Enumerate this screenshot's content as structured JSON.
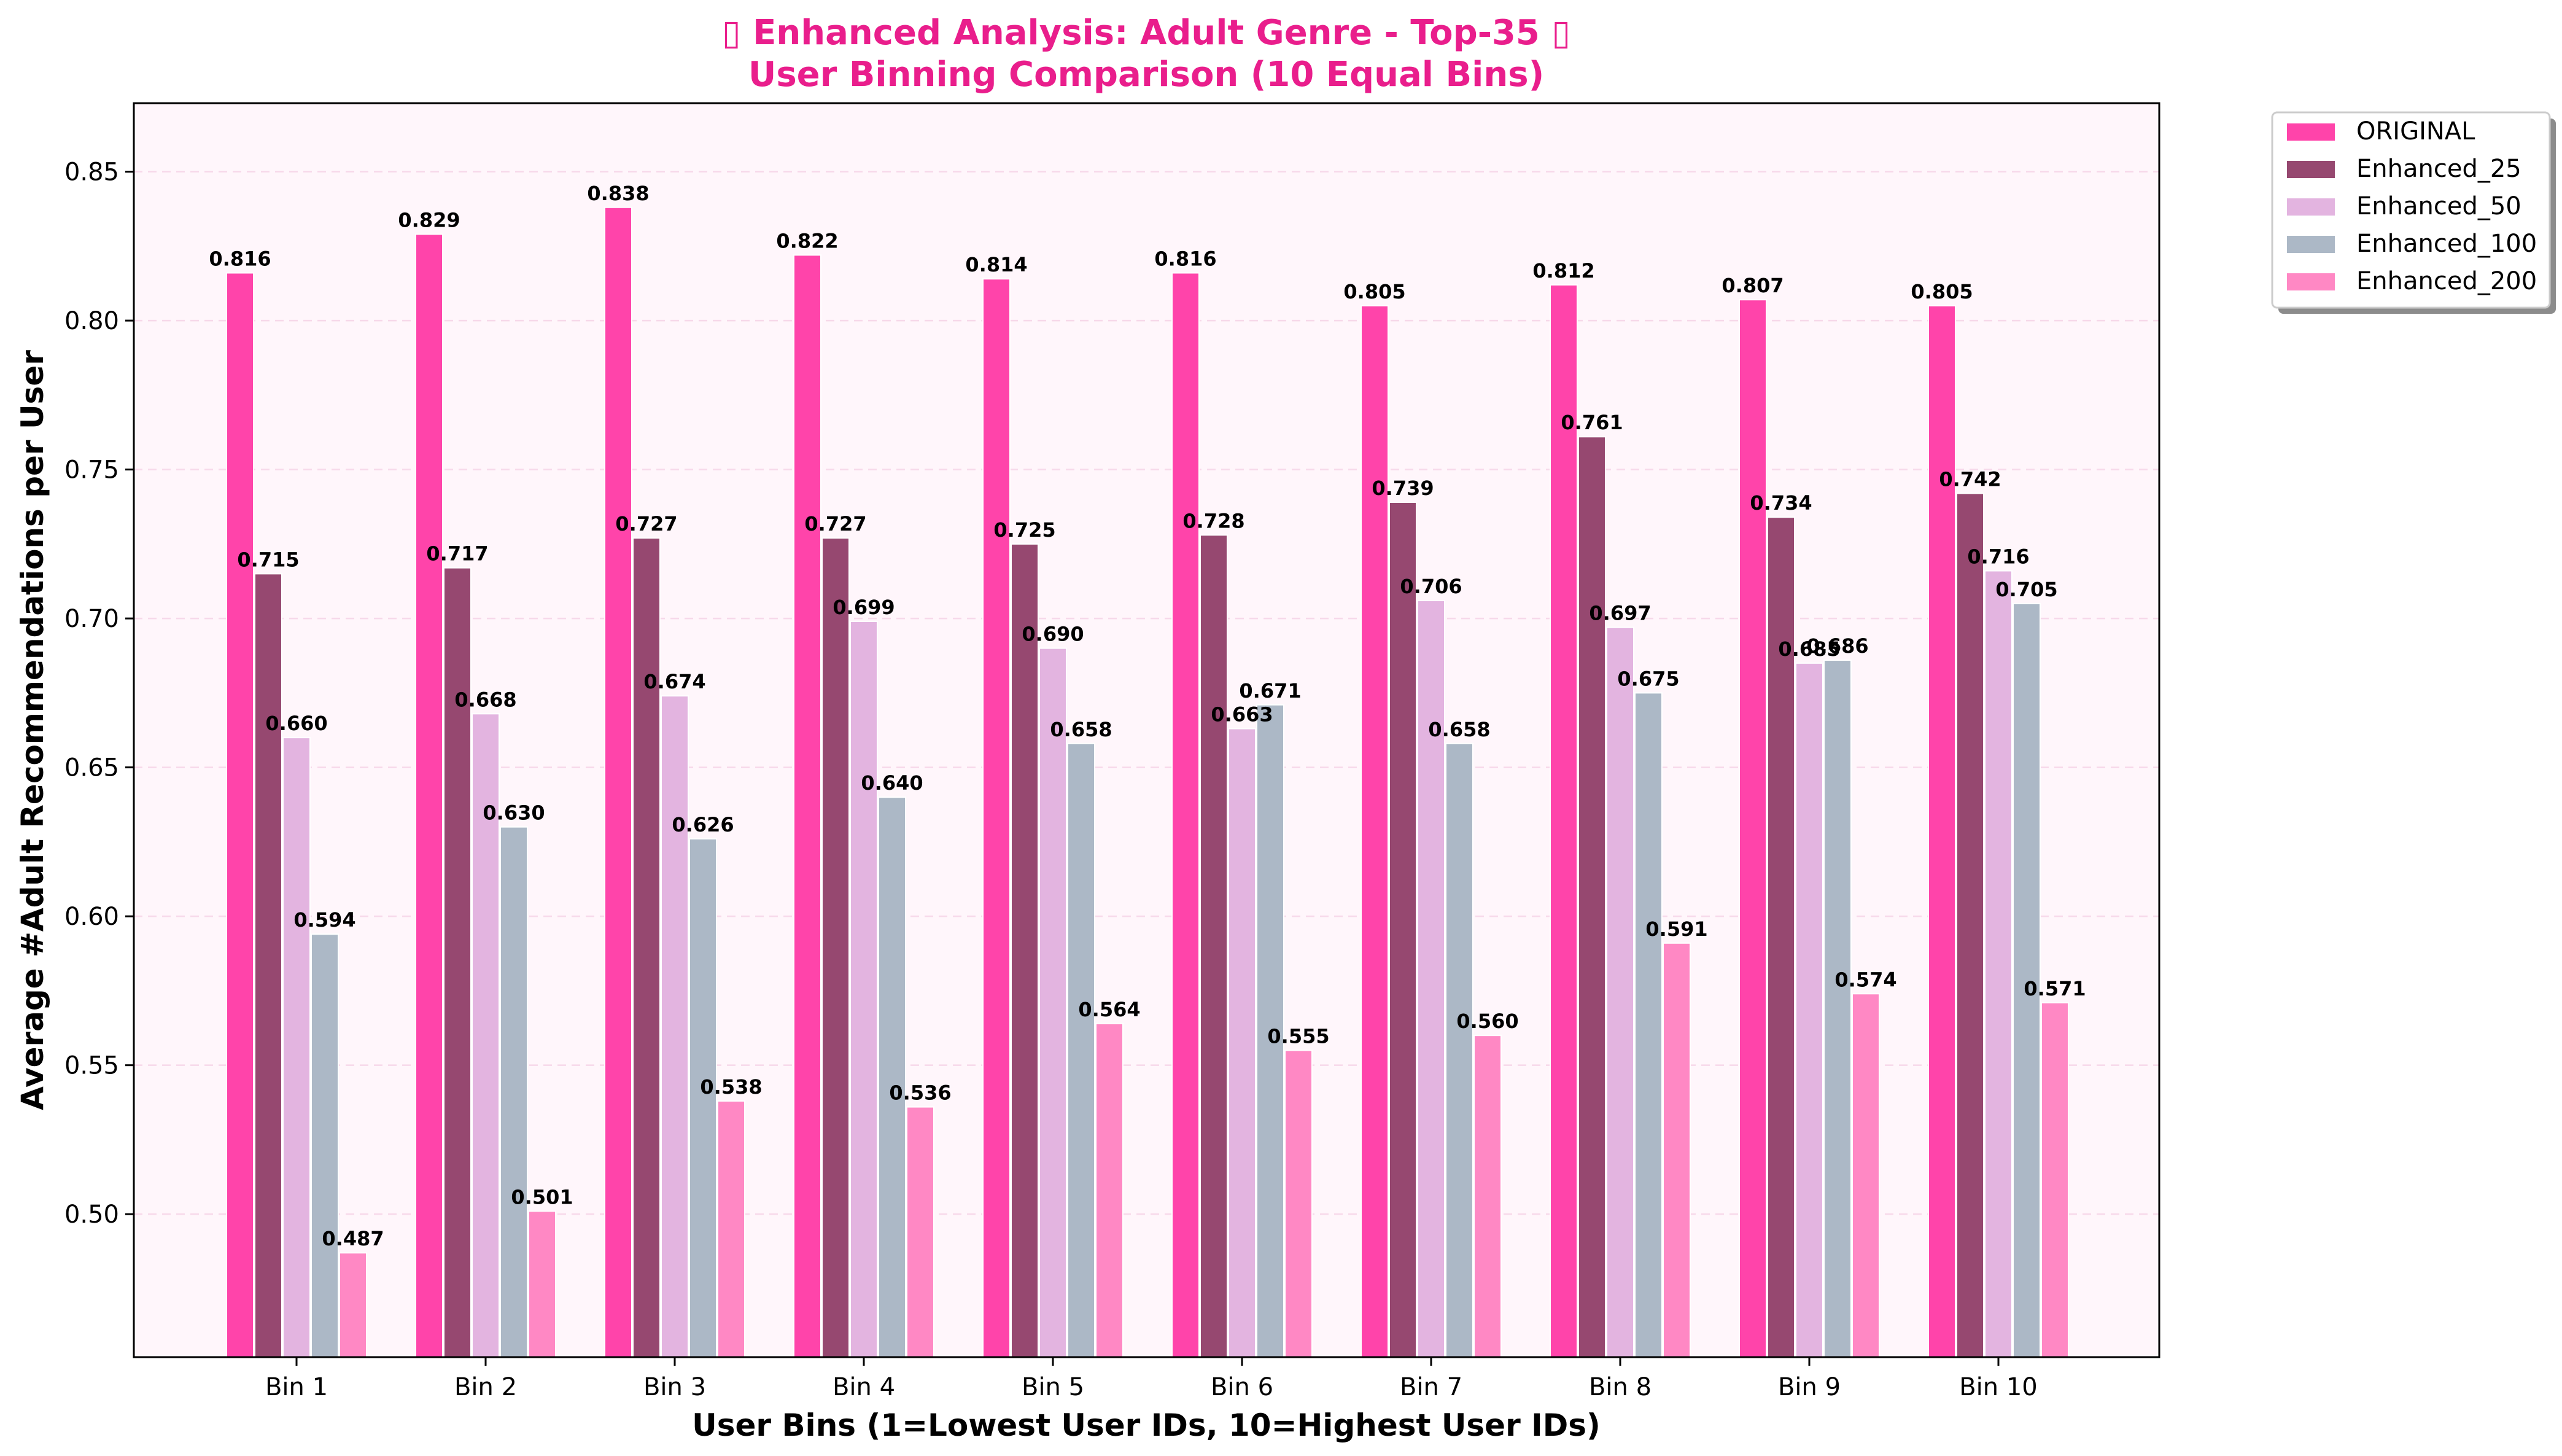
{
  "chart_data": {
    "type": "bar",
    "title_lines": [
      "▯ Enhanced Analysis: Adult Genre - Top-35 ▯",
      "User Binning Comparison (10 Equal Bins)"
    ],
    "xlabel": "User Bins (1=Lowest User IDs, 10=Highest User IDs)",
    "ylabel": "Average #Adult Recommendations per User",
    "ylim": [
      0.452,
      0.873
    ],
    "yticks": [
      "0.50",
      "0.55",
      "0.60",
      "0.65",
      "0.70",
      "0.75",
      "0.80",
      "0.85"
    ],
    "grid": "horizontal dashed",
    "legend_position": "outside top-right",
    "categories": [
      "Bin 1",
      "Bin 2",
      "Bin 3",
      "Bin 4",
      "Bin 5",
      "Bin 6",
      "Bin 7",
      "Bin 8",
      "Bin 9",
      "Bin 10"
    ],
    "series": [
      {
        "name": "ORIGINAL",
        "color": "#ff44aa",
        "values": [
          0.816,
          0.829,
          0.838,
          0.822,
          0.814,
          0.816,
          0.805,
          0.812,
          0.807,
          0.805
        ]
      },
      {
        "name": "Enhanced_25",
        "color": "#964870",
        "values": [
          0.715,
          0.717,
          0.727,
          0.727,
          0.725,
          0.728,
          0.739,
          0.761,
          0.734,
          0.742
        ]
      },
      {
        "name": "Enhanced_50",
        "color": "#e3b4e0",
        "values": [
          0.66,
          0.668,
          0.674,
          0.699,
          0.69,
          0.663,
          0.706,
          0.697,
          0.685,
          0.716
        ]
      },
      {
        "name": "Enhanced_100",
        "color": "#acb8c6",
        "values": [
          0.594,
          0.63,
          0.626,
          0.64,
          0.658,
          0.671,
          0.658,
          0.675,
          0.686,
          0.705
        ]
      },
      {
        "name": "Enhanced_200",
        "color": "#ff88c4",
        "values": [
          0.487,
          0.501,
          0.538,
          0.536,
          0.564,
          0.555,
          0.56,
          0.591,
          0.574,
          0.571
        ]
      }
    ],
    "colors": {
      "title": "#e91e8c",
      "plot_background": "#fff6fb",
      "grid": "#f7d9ea"
    }
  }
}
